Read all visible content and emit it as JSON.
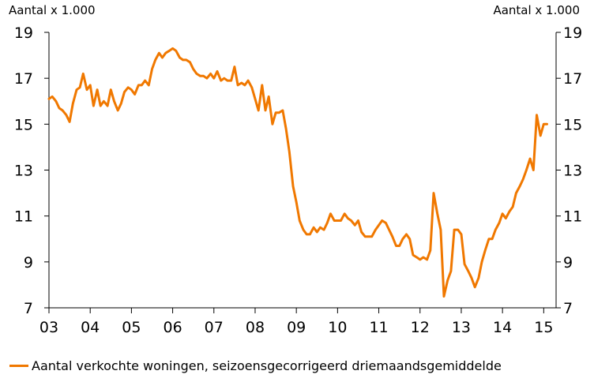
{
  "chart_data": {
    "type": "line",
    "ylabel_left": "Aantal x 1.000",
    "ylabel_right": "Aantal x 1.000",
    "ylim": [
      7,
      19
    ],
    "yticks": [
      7,
      9,
      11,
      13,
      15,
      17,
      19
    ],
    "xlim": [
      2003,
      2015.3
    ],
    "xticks": [
      "03",
      "04",
      "05",
      "06",
      "07",
      "08",
      "09",
      "10",
      "11",
      "12",
      "13",
      "14",
      "15"
    ],
    "grid": false,
    "legend_position": "bottom-left",
    "series": [
      {
        "name": "Aantal verkochte woningen, seizoensgecorrigeerd driemaandsgemiddelde",
        "color": "#F07800",
        "x": [
          2003.0,
          2003.08,
          2003.17,
          2003.25,
          2003.33,
          2003.42,
          2003.5,
          2003.58,
          2003.67,
          2003.75,
          2003.83,
          2003.92,
          2004.0,
          2004.08,
          2004.17,
          2004.25,
          2004.33,
          2004.42,
          2004.5,
          2004.58,
          2004.67,
          2004.75,
          2004.83,
          2004.92,
          2005.0,
          2005.08,
          2005.17,
          2005.25,
          2005.33,
          2005.42,
          2005.5,
          2005.58,
          2005.67,
          2005.75,
          2005.83,
          2005.92,
          2006.0,
          2006.08,
          2006.17,
          2006.25,
          2006.33,
          2006.42,
          2006.5,
          2006.58,
          2006.67,
          2006.75,
          2006.83,
          2006.92,
          2007.0,
          2007.08,
          2007.17,
          2007.25,
          2007.33,
          2007.42,
          2007.5,
          2007.58,
          2007.67,
          2007.75,
          2007.83,
          2007.92,
          2008.0,
          2008.08,
          2008.17,
          2008.25,
          2008.33,
          2008.42,
          2008.5,
          2008.58,
          2008.67,
          2008.75,
          2008.83,
          2008.92,
          2009.0,
          2009.08,
          2009.17,
          2009.25,
          2009.33,
          2009.42,
          2009.5,
          2009.58,
          2009.67,
          2009.75,
          2009.83,
          2009.92,
          2010.0,
          2010.08,
          2010.17,
          2010.25,
          2010.33,
          2010.42,
          2010.5,
          2010.58,
          2010.67,
          2010.75,
          2010.83,
          2010.92,
          2011.0,
          2011.08,
          2011.17,
          2011.25,
          2011.33,
          2011.42,
          2011.5,
          2011.58,
          2011.67,
          2011.75,
          2011.83,
          2011.92,
          2012.0,
          2012.08,
          2012.17,
          2012.25,
          2012.33,
          2012.42,
          2012.5,
          2012.58,
          2012.67,
          2012.75,
          2012.83,
          2012.92,
          2013.0,
          2013.08,
          2013.17,
          2013.25,
          2013.33,
          2013.42,
          2013.5,
          2013.58,
          2013.67,
          2013.75,
          2013.83,
          2013.92,
          2014.0,
          2014.08,
          2014.17,
          2014.25,
          2014.33,
          2014.42,
          2014.5,
          2014.58,
          2014.67,
          2014.75,
          2014.83,
          2014.92,
          2015.0,
          2015.08
        ],
        "y": [
          16.1,
          16.2,
          16.0,
          15.7,
          15.6,
          15.4,
          15.1,
          15.9,
          16.5,
          16.6,
          17.2,
          16.5,
          16.7,
          15.8,
          16.5,
          15.8,
          16.0,
          15.8,
          16.5,
          16.0,
          15.6,
          15.9,
          16.4,
          16.6,
          16.5,
          16.3,
          16.7,
          16.7,
          16.9,
          16.7,
          17.4,
          17.8,
          18.1,
          17.9,
          18.1,
          18.2,
          18.3,
          18.2,
          17.9,
          17.8,
          17.8,
          17.7,
          17.4,
          17.2,
          17.1,
          17.1,
          17.0,
          17.2,
          17.0,
          17.3,
          16.9,
          17.0,
          16.9,
          16.9,
          17.5,
          16.7,
          16.8,
          16.7,
          16.9,
          16.6,
          16.1,
          15.6,
          16.7,
          15.6,
          16.2,
          15.0,
          15.5,
          15.5,
          15.6,
          14.8,
          13.8,
          12.3,
          11.6,
          10.8,
          10.4,
          10.2,
          10.2,
          10.5,
          10.3,
          10.5,
          10.4,
          10.7,
          11.1,
          10.8,
          10.8,
          10.8,
          11.1,
          10.9,
          10.8,
          10.6,
          10.8,
          10.3,
          10.1,
          10.1,
          10.1,
          10.4,
          10.6,
          10.8,
          10.7,
          10.4,
          10.1,
          9.7,
          9.7,
          10.0,
          10.2,
          10.0,
          9.3,
          9.2,
          9.1,
          9.2,
          9.1,
          9.5,
          12.0,
          11.1,
          10.4,
          7.5,
          8.2,
          8.6,
          10.4,
          10.4,
          10.2,
          8.9,
          8.6,
          8.3,
          7.9,
          8.3,
          9.0,
          9.5,
          10.0,
          10.0,
          10.4,
          10.7,
          11.1,
          10.9,
          11.2,
          11.4,
          12.0,
          12.3,
          12.6,
          13.0,
          13.5,
          13.0,
          15.4,
          14.5,
          15.0,
          15.0
        ]
      }
    ]
  }
}
